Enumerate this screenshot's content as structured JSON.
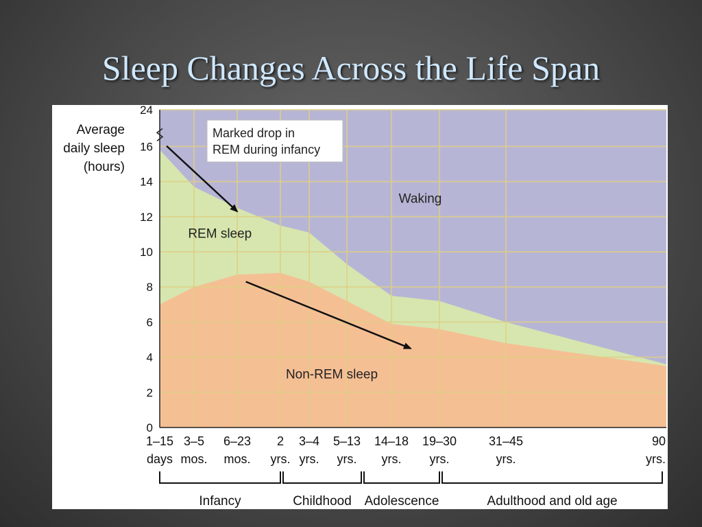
{
  "slide": {
    "title": "Sleep Changes Across the Life Span"
  },
  "chart_data": {
    "type": "area",
    "ylabel": [
      "Average",
      "daily sleep",
      "(hours)"
    ],
    "ylim": [
      0,
      24
    ],
    "yticks": [
      0,
      2,
      4,
      6,
      8,
      10,
      12,
      14,
      16,
      24
    ],
    "axis_break": true,
    "categories": [
      [
        "1–15",
        "days"
      ],
      [
        "3–5",
        "mos."
      ],
      [
        "6–23",
        "mos."
      ],
      [
        "2",
        "yrs."
      ],
      [
        "3–4",
        "yrs."
      ],
      [
        "5–13",
        "yrs."
      ],
      [
        "14–18",
        "yrs."
      ],
      [
        "19–30",
        "yrs."
      ],
      [
        "31–45",
        "yrs."
      ],
      [
        "90",
        "yrs."
      ]
    ],
    "series": [
      {
        "name": "Non-REM sleep",
        "color": "#f5bf94",
        "values": [
          7.0,
          8.0,
          8.7,
          8.8,
          8.3,
          7.2,
          5.9,
          5.6,
          4.8,
          3.5
        ]
      },
      {
        "name": "REM sleep",
        "color": "#d6e6ae",
        "values": [
          8.8,
          5.7,
          3.8,
          2.7,
          2.8,
          2.1,
          1.6,
          1.6,
          1.2,
          0.1
        ]
      },
      {
        "name": "Waking",
        "color": "#b7b5d6",
        "values": [
          8.2,
          10.3,
          11.5,
          12.5,
          12.9,
          14.7,
          16.5,
          16.8,
          18.0,
          20.4
        ]
      }
    ],
    "annotations": [
      {
        "text": [
          "Marked drop in",
          "REM during infancy"
        ],
        "boxed": true,
        "arrow_from": [
          0.2,
          16.1
        ],
        "arrow_to": [
          2.0,
          12.3
        ]
      },
      {
        "text": [
          "Waking"
        ],
        "at": [
          6.6,
          12.8
        ]
      },
      {
        "text": [
          "REM sleep"
        ],
        "at": [
          1.6,
          10.8
        ]
      },
      {
        "text": [
          "Non-REM sleep"
        ],
        "at": [
          4.6,
          2.8
        ],
        "arrow_from": [
          2.2,
          8.3
        ],
        "arrow_to": [
          6.4,
          4.5
        ]
      }
    ],
    "life_stages": [
      {
        "label": "Infancy",
        "from": 0,
        "to": 2
      },
      {
        "label": "Childhood",
        "from": 2,
        "to": 3
      },
      {
        "label": "Adolescence",
        "from": 3,
        "to": 4
      },
      {
        "label": "Adulthood and old age",
        "from": 4,
        "to": 6
      }
    ],
    "grid": true
  }
}
